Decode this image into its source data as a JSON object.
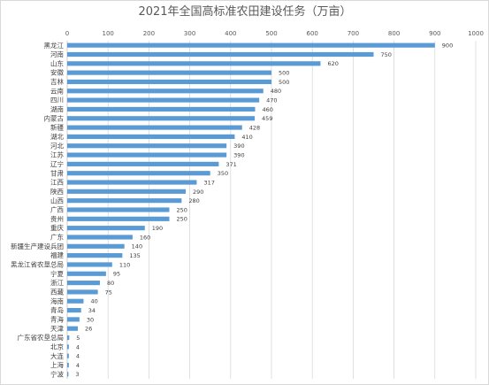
{
  "chart_data": {
    "type": "bar",
    "orientation": "horizontal",
    "title": "2021年全国高标准农田建设任务（万亩）",
    "xlabel": "",
    "ylabel": "",
    "xlim": [
      0,
      1000
    ],
    "x_ticks": [
      0,
      100,
      200,
      300,
      400,
      500,
      600,
      700,
      800,
      900,
      1000
    ],
    "x_axis_position": "top",
    "grid": true,
    "bar_color": "#5b9bd5",
    "data_labels": true,
    "categories": [
      "黑龙江",
      "河南",
      "山东",
      "安徽",
      "吉林",
      "云南",
      "四川",
      "湖南",
      "内蒙古",
      "新疆",
      "湖北",
      "河北",
      "江苏",
      "辽宁",
      "甘肃",
      "江西",
      "陕西",
      "山西",
      "广西",
      "贵州",
      "重庆",
      "广东",
      "新疆生产建设兵团",
      "福建",
      "黑龙江省农垦总局",
      "宁夏",
      "浙江",
      "西藏",
      "海南",
      "青岛",
      "青海",
      "天津",
      "广东省农垦总局",
      "北京",
      "大连",
      "上海",
      "宁波"
    ],
    "values": [
      900,
      750,
      620,
      500,
      500,
      480,
      470,
      460,
      459,
      428,
      410,
      390,
      390,
      371,
      350,
      317,
      290,
      280,
      250,
      250,
      190,
      160,
      140,
      135,
      110,
      95,
      80,
      75,
      40,
      34,
      30,
      26,
      5,
      4,
      4,
      4,
      3
    ]
  }
}
